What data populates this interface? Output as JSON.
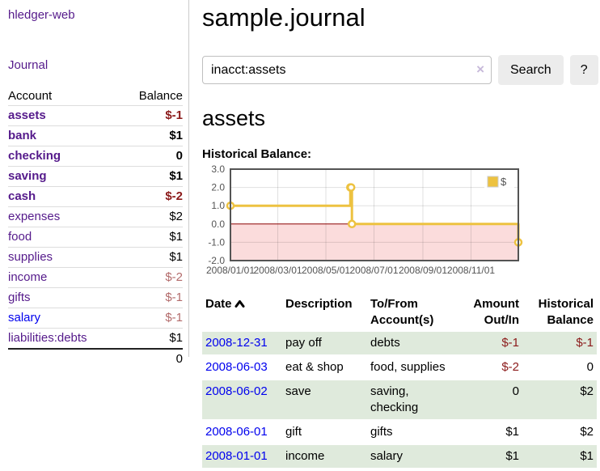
{
  "app_title": "hledger-web",
  "colors": {
    "link_purple": "#551a8b",
    "link_blue": "#0000ee",
    "negative_strong": "#8b1a1a",
    "negative_muted": "#b36b6b",
    "row_green": "#dfeadc",
    "accent_gold": "#edc240"
  },
  "sidebar": {
    "journal_link": "Journal",
    "account_header": "Account",
    "balance_header": "Balance",
    "rows": [
      {
        "account": "assets",
        "balance": "$-1"
      },
      {
        "account": "bank",
        "balance": "$1"
      },
      {
        "account": "checking",
        "balance": "0"
      },
      {
        "account": "saving",
        "balance": "$1"
      },
      {
        "account": "cash",
        "balance": "$-2"
      },
      {
        "account": "expenses",
        "balance": "$2"
      },
      {
        "account": "food",
        "balance": "$1"
      },
      {
        "account": "supplies",
        "balance": "$1"
      },
      {
        "account": "income",
        "balance": "$-2"
      },
      {
        "account": "gifts",
        "balance": "$-1"
      },
      {
        "account": "salary",
        "balance": "$-1"
      },
      {
        "account": "liabilities:debts",
        "balance": "$1"
      }
    ],
    "total": "0"
  },
  "main": {
    "title": "sample.journal",
    "search_value": "inacct:assets",
    "clear_icon": "×",
    "search_button": "Search",
    "help_button": "?",
    "account_heading": "assets",
    "chart_heading": "Historical Balance:"
  },
  "chart_data": {
    "type": "line",
    "title": "Historical Balance",
    "legend": {
      "position": "top-right",
      "label": "$"
    },
    "series": [
      {
        "name": "$",
        "color": "#edc240",
        "steps": true,
        "points": [
          [
            "2008/01/01",
            1
          ],
          [
            "2008/06/01",
            2
          ],
          [
            "2008/06/02",
            2
          ],
          [
            "2008/06/03",
            0
          ],
          [
            "2008/12/31",
            -1
          ]
        ]
      }
    ],
    "x_range": [
      "2008/01/01",
      "2008/12/31"
    ],
    "x_ticks": [
      "2008/01/01",
      "2008/03/01",
      "2008/05/01",
      "2008/07/01",
      "2008/09/01",
      "2008/11/01"
    ],
    "y_range": [
      -2,
      3
    ],
    "y_ticks": [
      "3.0",
      "2.0",
      "1.0",
      "0.0",
      "-1.0",
      "-2.0"
    ],
    "grid": true,
    "negative_region_fill": "#fbdcdc",
    "zero_line_color": "#8b0000",
    "axis_text_color": "#545454",
    "border_color": "#545454"
  },
  "register": {
    "headers": {
      "date": "Date",
      "description": "Description",
      "accounts": "To/From Account(s)",
      "amount": "Amount Out/In",
      "balance": "Historical Balance"
    },
    "rows": [
      {
        "date": "2008-12-31",
        "description": "pay off",
        "accounts": "debts",
        "amount": "$-1",
        "balance": "$-1"
      },
      {
        "date": "2008-06-03",
        "description": "eat & shop",
        "accounts": "food, supplies",
        "amount": "$-2",
        "balance": "0"
      },
      {
        "date": "2008-06-02",
        "description": "save",
        "accounts": "saving, checking",
        "amount": "0",
        "balance": "$2"
      },
      {
        "date": "2008-06-01",
        "description": "gift",
        "accounts": "gifts",
        "amount": "$1",
        "balance": "$2"
      },
      {
        "date": "2008-01-01",
        "description": "income",
        "accounts": "salary",
        "amount": "$1",
        "balance": "$1"
      }
    ]
  }
}
